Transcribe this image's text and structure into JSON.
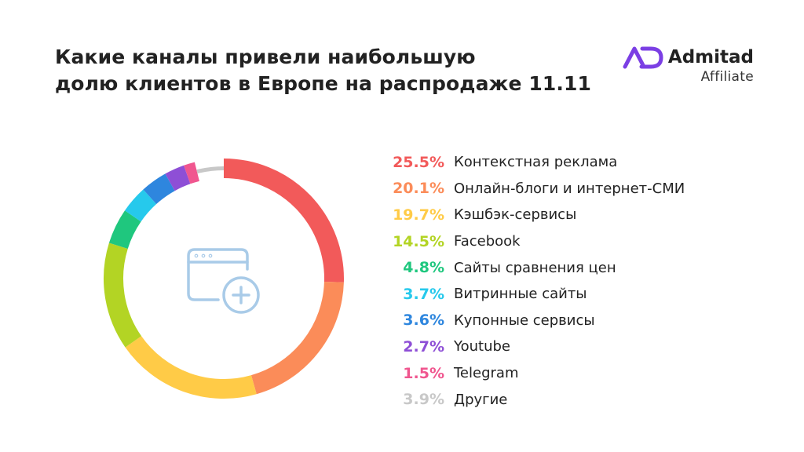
{
  "title": {
    "line1": "Какие каналы привели наибольшую",
    "line2": "долю клиентов в Европе на распродаже 11.11"
  },
  "brand": {
    "name": "Admitad",
    "sub": "Affiliate",
    "logo_icon": "admitad-logo-icon",
    "logo_color": "#7b3fe4"
  },
  "center_icon": "browser-window-add-icon",
  "chart_data": {
    "type": "pie",
    "donut": true,
    "series": [
      {
        "name": "Контекстная реклама",
        "label": "25.5%",
        "value": 25.5,
        "color": "#f25a5a"
      },
      {
        "name": "Онлайн-блоги и интернет-СМИ",
        "label": "20.1%",
        "value": 20.1,
        "color": "#fb8c59"
      },
      {
        "name": "Кэшбэк-сервисы",
        "label": "19.7%",
        "value": 19.7,
        "color": "#ffcb47"
      },
      {
        "name": "Facebook",
        "label": "14.5%",
        "value": 14.5,
        "color": "#b3d424"
      },
      {
        "name": "Сайты сравнения цен",
        "label": "4.8%",
        "value": 4.8,
        "color": "#1fc77e"
      },
      {
        "name": "Витринные сайты",
        "label": "3.7%",
        "value": 3.7,
        "color": "#26c9ec"
      },
      {
        "name": "Купонные сервисы",
        "label": "3.6%",
        "value": 3.6,
        "color": "#2e86de"
      },
      {
        "name": "Youtube",
        "label": "2.7%",
        "value": 2.7,
        "color": "#8e4fd6"
      },
      {
        "name": "Telegram",
        "label": "1.5%",
        "value": 1.5,
        "color": "#f0568f"
      },
      {
        "name": "Другие",
        "label": "3.9%",
        "value": 3.9,
        "color": "#c8c8c8"
      }
    ]
  }
}
